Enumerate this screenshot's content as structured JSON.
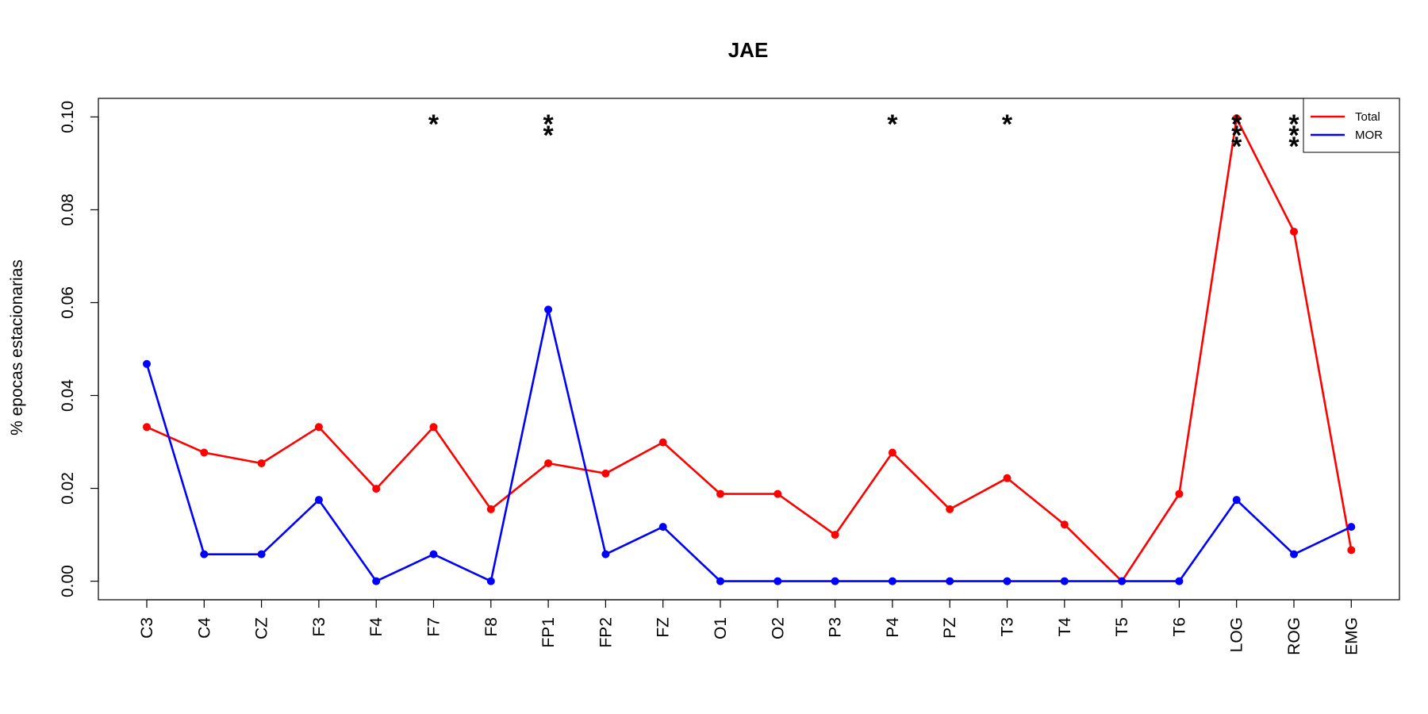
{
  "chart_data": {
    "type": "line",
    "title": "JAE",
    "xlabel": "",
    "ylabel": "% epocas estacionarias",
    "ylim": [
      -0.004,
      0.104
    ],
    "yticks": [
      "0.00",
      "0.02",
      "0.04",
      "0.06",
      "0.08",
      "0.10"
    ],
    "grid": false,
    "legend_position": "top-right",
    "categories": [
      "C3",
      "C4",
      "CZ",
      "F3",
      "F4",
      "F7",
      "F8",
      "FP1",
      "FP2",
      "FZ",
      "O1",
      "O2",
      "P3",
      "P4",
      "PZ",
      "T3",
      "T4",
      "T5",
      "T6",
      "LOG",
      "ROG",
      "EMG"
    ],
    "series": [
      {
        "name": "Total",
        "color": "#ff0000",
        "values": [
          0.0332,
          0.0277,
          0.0254,
          0.0332,
          0.0199,
          0.0332,
          0.0155,
          0.0254,
          0.0232,
          0.0299,
          0.0188,
          0.0188,
          0.01,
          0.0277,
          0.0155,
          0.0222,
          0.0122,
          0.0,
          0.0188,
          0.0997,
          0.0753,
          0.0067
        ]
      },
      {
        "name": "MOR",
        "color": "#0000ff",
        "values": [
          0.0468,
          0.0058,
          0.0058,
          0.0175,
          0.0,
          0.0058,
          0.0,
          0.0585,
          0.0058,
          0.0117,
          0.0,
          0.0,
          0.0,
          0.0,
          0.0,
          0.0,
          0.0,
          0.0,
          0.0,
          0.0175,
          0.0058,
          0.0117
        ]
      }
    ],
    "annotations": [
      {
        "category": "F7",
        "text": "*",
        "count": 1
      },
      {
        "category": "FP1",
        "text": "*",
        "count": 2
      },
      {
        "category": "P4",
        "text": "*",
        "count": 1
      },
      {
        "category": "T3",
        "text": "*",
        "count": 1
      },
      {
        "category": "LOG",
        "text": "*",
        "count": 3
      },
      {
        "category": "ROG",
        "text": "*",
        "count": 3
      }
    ]
  }
}
